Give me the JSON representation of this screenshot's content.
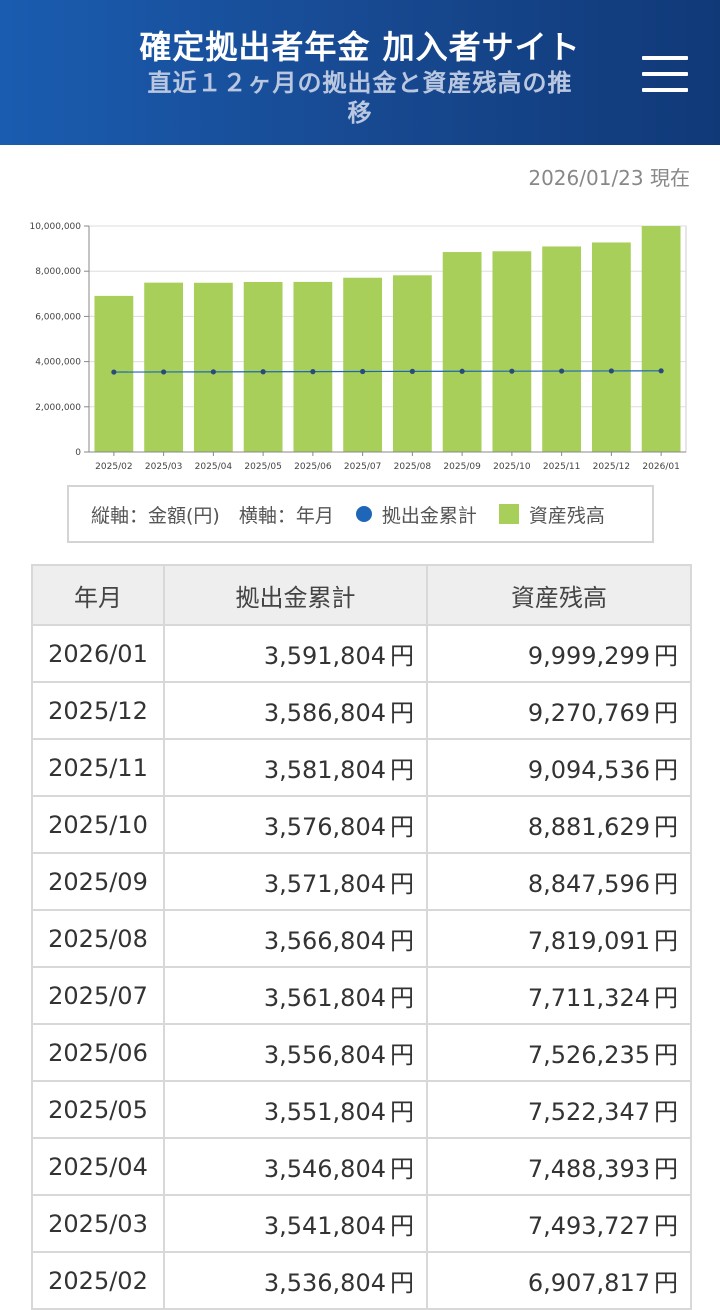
{
  "header": {
    "title": "確定拠出者年金 加入者サイト",
    "subtitle_line1": "直近１２ヶ月の拠出金と資産残高の推",
    "subtitle_line2": "移"
  },
  "as_of": "2026/01/23 現在",
  "legend": {
    "axis_note": "縦軸：金額(円)　横軸：年月",
    "contrib_label": "拠出金累計",
    "asset_label": "資産残高"
  },
  "colors": {
    "header_bg": "#17488f",
    "bar": "#a8cf5a",
    "line": "#1f66b8"
  },
  "chart_data": {
    "type": "bar",
    "categories": [
      "2025/02",
      "2025/03",
      "2025/04",
      "2025/05",
      "2025/06",
      "2025/07",
      "2025/08",
      "2025/09",
      "2025/10",
      "2025/11",
      "2025/12",
      "2026/01"
    ],
    "series": [
      {
        "name": "資産残高",
        "type": "bar",
        "values": [
          6907817,
          7493727,
          7488393,
          7522347,
          7526235,
          7711324,
          7819091,
          8847596,
          8881629,
          9094536,
          9270769,
          9999299
        ]
      },
      {
        "name": "拠出金累計",
        "type": "line",
        "values": [
          3536804,
          3541804,
          3546804,
          3551804,
          3556804,
          3561804,
          3566804,
          3571804,
          3576804,
          3581804,
          3586804,
          3591804
        ]
      }
    ],
    "yticks": [
      "0",
      "2,000,000",
      "4,000,000",
      "6,000,000",
      "8,000,000",
      "10,000,000"
    ],
    "ylim": [
      0,
      10000000
    ],
    "grid": true
  },
  "table": {
    "headers": [
      "年月",
      "拠出金累計",
      "資産残高"
    ],
    "unit": "円",
    "rows": [
      {
        "month": "2026/01",
        "contrib": "3,591,804",
        "asset": "9,999,299"
      },
      {
        "month": "2025/12",
        "contrib": "3,586,804",
        "asset": "9,270,769"
      },
      {
        "month": "2025/11",
        "contrib": "3,581,804",
        "asset": "9,094,536"
      },
      {
        "month": "2025/10",
        "contrib": "3,576,804",
        "asset": "8,881,629"
      },
      {
        "month": "2025/09",
        "contrib": "3,571,804",
        "asset": "8,847,596"
      },
      {
        "month": "2025/08",
        "contrib": "3,566,804",
        "asset": "7,819,091"
      },
      {
        "month": "2025/07",
        "contrib": "3,561,804",
        "asset": "7,711,324"
      },
      {
        "month": "2025/06",
        "contrib": "3,556,804",
        "asset": "7,526,235"
      },
      {
        "month": "2025/05",
        "contrib": "3,551,804",
        "asset": "7,522,347"
      },
      {
        "month": "2025/04",
        "contrib": "3,546,804",
        "asset": "7,488,393"
      },
      {
        "month": "2025/03",
        "contrib": "3,541,804",
        "asset": "7,493,727"
      },
      {
        "month": "2025/02",
        "contrib": "3,536,804",
        "asset": "6,907,817"
      }
    ]
  }
}
